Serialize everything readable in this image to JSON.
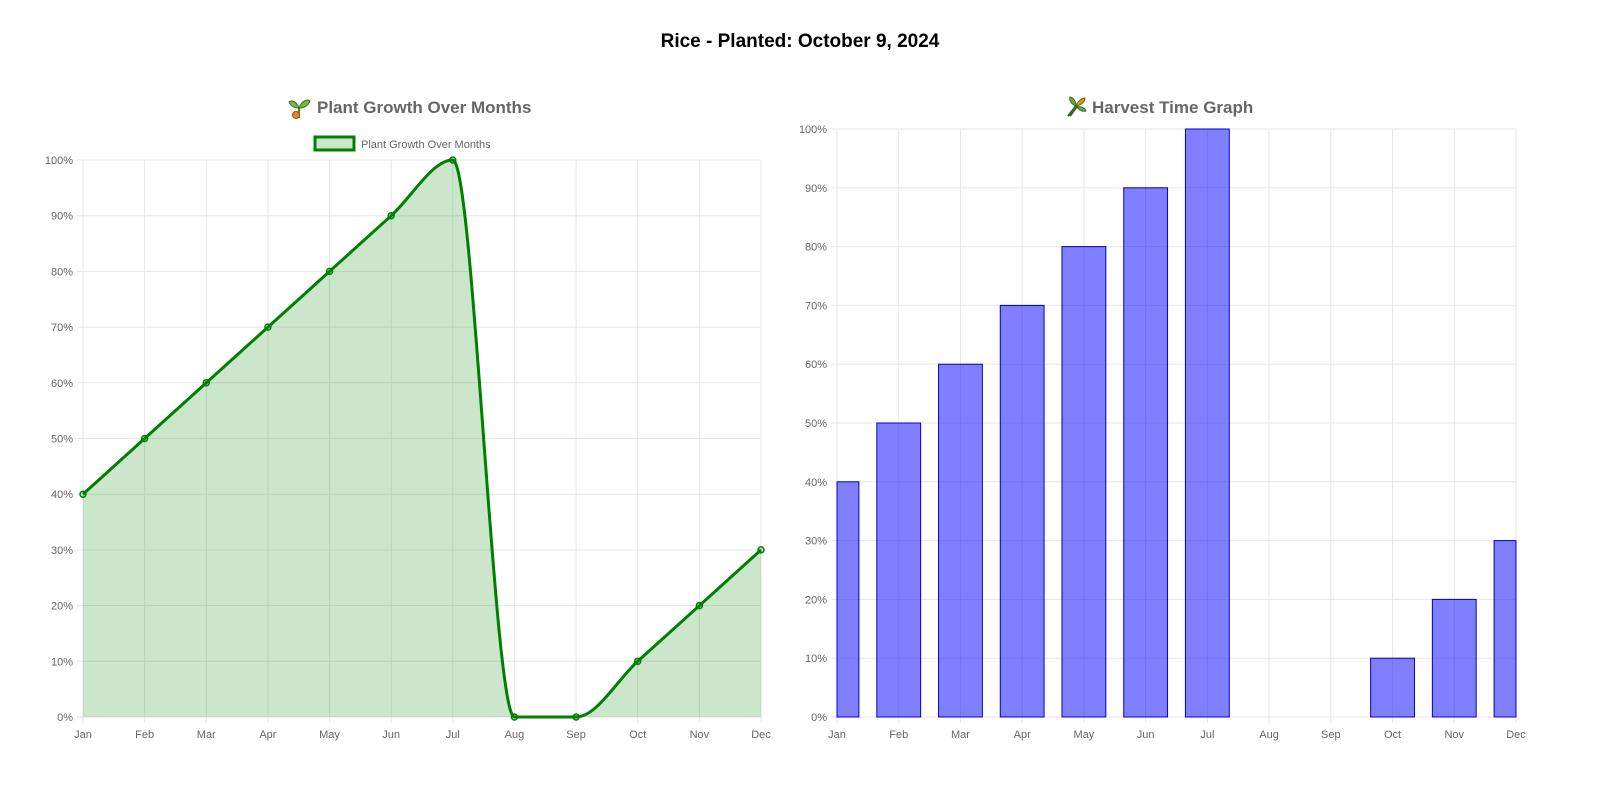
{
  "page": {
    "title": "Rice - Planted: October 9, 2024"
  },
  "colors": {
    "line": "#008000",
    "line_fill": "rgba(0,128,0,0.2)",
    "bar_fill": "rgba(0,0,255,0.5)",
    "bar_border": "#0000cc",
    "grid": "#e6e6e6",
    "tick_text": "#666666"
  },
  "icons": {
    "growth": "seedling-icon",
    "harvest": "sheaf-of-rice-icon"
  },
  "chart_data": [
    {
      "type": "area",
      "title": "Plant Growth Over Months",
      "legend": "top",
      "grid": true,
      "categories": [
        "Jan",
        "Feb",
        "Mar",
        "Apr",
        "May",
        "Jun",
        "Jul",
        "Aug",
        "Sep",
        "Oct",
        "Nov",
        "Dec"
      ],
      "series": [
        {
          "name": "Plant Growth Over Months",
          "values": [
            40,
            50,
            60,
            70,
            80,
            90,
            100,
            0,
            0,
            10,
            20,
            30
          ]
        }
      ],
      "ylim": [
        0,
        100
      ],
      "y_ticks": [
        "0%",
        "10%",
        "20%",
        "30%",
        "40%",
        "50%",
        "60%",
        "70%",
        "80%",
        "90%",
        "100%"
      ]
    },
    {
      "type": "bar",
      "title": "Harvest Time Graph",
      "grid": true,
      "categories": [
        "Jan",
        "Feb",
        "Mar",
        "Apr",
        "May",
        "Jun",
        "Jul",
        "Aug",
        "Sep",
        "Oct",
        "Nov",
        "Dec"
      ],
      "values": [
        40,
        50,
        60,
        70,
        80,
        90,
        100,
        0,
        0,
        10,
        20,
        30
      ],
      "ylim": [
        0,
        100
      ],
      "y_ticks": [
        "0%",
        "10%",
        "20%",
        "30%",
        "40%",
        "50%",
        "60%",
        "70%",
        "80%",
        "90%",
        "100%"
      ]
    }
  ]
}
